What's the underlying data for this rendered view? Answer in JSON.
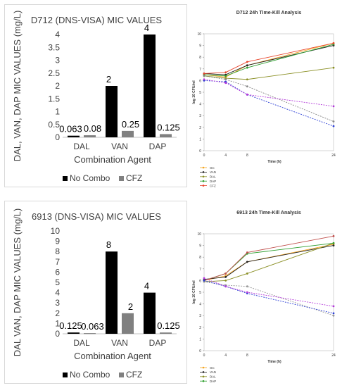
{
  "chart_data": [
    {
      "type": "bar",
      "title": "D712 (DNS-VISA) MIC VALUES",
      "xlabel": "Combination Agent",
      "ylabel": "DAL, VAN, DAP MIC VALUES (mg/L)",
      "ylim": [
        0,
        4
      ],
      "yticks": [
        "0",
        "0.5",
        "1",
        "1.5",
        "2",
        "2.5",
        "3",
        "3.5",
        "4"
      ],
      "categories": [
        "DAL",
        "VAN",
        "DAP"
      ],
      "series": [
        {
          "name": "No Combo",
          "values": [
            0.063,
            2,
            4
          ],
          "labels": [
            "0.063",
            "2",
            "4"
          ],
          "color": "#000000"
        },
        {
          "name": "CFZ",
          "values": [
            0.08,
            0.25,
            0.125
          ],
          "labels": [
            "0.08",
            "0.25",
            "0.125"
          ],
          "color": "#808080"
        }
      ],
      "legend": "bottom"
    },
    {
      "type": "line",
      "title": "D712 24h Time-Kill Analysis",
      "xlabel": "Time (h)",
      "ylabel": "log 10 CFU/ml",
      "xlim": [
        0,
        24
      ],
      "ylim": [
        0,
        10
      ],
      "xticks": [
        0,
        4,
        8,
        24
      ],
      "yticks": [
        0,
        1,
        2,
        3,
        4,
        5,
        6,
        7,
        8,
        9,
        10
      ],
      "x": [
        0,
        4,
        8,
        24
      ],
      "series": [
        {
          "name": "GC",
          "values": [
            6.5,
            6.3,
            7.3,
            9.2
          ],
          "color": "#f5a623",
          "dashed": false
        },
        {
          "name": "VAN",
          "values": [
            6.6,
            6.5,
            7.3,
            9.0
          ],
          "color": "#222222",
          "dashed": false
        },
        {
          "name": "DAL",
          "values": [
            6.4,
            6.2,
            6.1,
            7.1
          ],
          "color": "#8a8f24",
          "dashed": false
        },
        {
          "name": "DAP",
          "values": [
            6.5,
            6.4,
            7.1,
            9.1
          ],
          "color": "#2e9e2e",
          "dashed": false
        },
        {
          "name": "CFZ",
          "values": [
            6.6,
            6.7,
            7.6,
            9.2
          ],
          "color": "#e8452c",
          "dashed": false
        },
        {
          "name": "DAL+CFZ",
          "values": [
            6.4,
            6.1,
            5.5,
            2.5
          ],
          "color": "#888888",
          "dashed": true
        },
        {
          "name": "VAN+CFZ",
          "values": [
            6.0,
            5.9,
            4.8,
            2.1
          ],
          "color": "#2c3fd6",
          "dashed": true
        },
        {
          "name": "DAP+CFZ",
          "values": [
            6.1,
            5.8,
            4.8,
            3.8
          ],
          "color": "#b33ad9",
          "dashed": true
        }
      ],
      "legend": "left"
    },
    {
      "type": "bar",
      "title": "6913 (DNS-VISA) MIC VALUES",
      "xlabel": "Combination Agent",
      "ylabel": "DAL VAN, DAP MIC VALUES (mg/L)",
      "ylim": [
        0,
        10
      ],
      "yticks": [
        "0",
        "1",
        "2",
        "3",
        "4",
        "5",
        "6",
        "7",
        "8",
        "9",
        "10"
      ],
      "categories": [
        "DAL",
        "VAN",
        "DAP"
      ],
      "series": [
        {
          "name": "No Combo",
          "values": [
            0.125,
            8,
            4
          ],
          "labels": [
            "0.125",
            "8",
            "4"
          ],
          "color": "#000000"
        },
        {
          "name": "CFZ",
          "values": [
            0.063,
            2,
            0.125
          ],
          "labels": [
            "0.063",
            "2",
            "0.125"
          ],
          "color": "#808080"
        }
      ],
      "legend": "bottom"
    },
    {
      "type": "line",
      "title": "6913 24h Time-Kill Analysis",
      "xlabel": "Time (h)",
      "ylabel": "log 10 CFU/ml",
      "xlim": [
        0,
        24
      ],
      "ylim": [
        0,
        10
      ],
      "xticks": [
        0,
        4,
        8,
        24
      ],
      "yticks": [
        0,
        1,
        2,
        3,
        4,
        5,
        6,
        7,
        8,
        9,
        10
      ],
      "x": [
        0,
        4,
        8,
        24
      ],
      "series": [
        {
          "name": "GC",
          "values": [
            6.0,
            6.4,
            7.6,
            9.1
          ],
          "color": "#f5a623",
          "dashed": false
        },
        {
          "name": "VAN",
          "values": [
            6.1,
            6.3,
            7.6,
            9.0
          ],
          "color": "#222222",
          "dashed": false
        },
        {
          "name": "DAL",
          "values": [
            5.9,
            6.0,
            6.6,
            9.2
          ],
          "color": "#8a8f24",
          "dashed": false
        },
        {
          "name": "DAP",
          "values": [
            6.0,
            6.6,
            8.3,
            9.2
          ],
          "color": "#2e9e2e",
          "dashed": false
        },
        {
          "name": "CFZ",
          "values": [
            6.0,
            6.6,
            8.4,
            9.8
          ],
          "color": "#c0504d",
          "dashed": false
        },
        {
          "name": "DAL+CFZ",
          "values": [
            5.9,
            5.6,
            5.5,
            3.0
          ],
          "color": "#999999",
          "dashed": true
        },
        {
          "name": "VAN+CFZ",
          "values": [
            6.0,
            5.5,
            4.9,
            3.2
          ],
          "color": "#2c3fd6",
          "dashed": true
        },
        {
          "name": "DAP+CFZ",
          "values": [
            6.2,
            5.5,
            5.0,
            3.8
          ],
          "color": "#b33ad9",
          "dashed": true
        }
      ],
      "legend": "left"
    }
  ]
}
